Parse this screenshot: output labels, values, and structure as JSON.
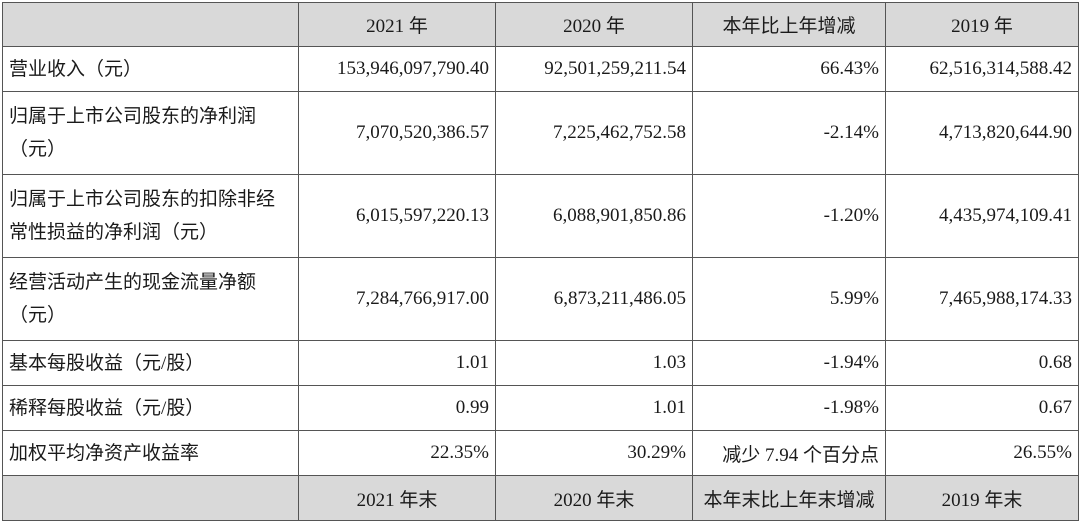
{
  "header": [
    "",
    "2021 年",
    "2020 年",
    "本年比上年增减",
    "2019 年"
  ],
  "rows": [
    [
      "营业收入（元）",
      "153,946,097,790.40",
      "92,501,259,211.54",
      "66.43%",
      "62,516,314,588.42"
    ],
    [
      "归属于上市公司股东的净利润（元）",
      "7,070,520,386.57",
      "7,225,462,752.58",
      "-2.14%",
      "4,713,820,644.90"
    ],
    [
      "归属于上市公司股东的扣除非经常性损益的净利润（元）",
      "6,015,597,220.13",
      "6,088,901,850.86",
      "-1.20%",
      "4,435,974,109.41"
    ],
    [
      "经营活动产生的现金流量净额（元）",
      "7,284,766,917.00",
      "6,873,211,486.05",
      "5.99%",
      "7,465,988,174.33"
    ],
    [
      "基本每股收益（元/股）",
      "1.01",
      "1.03",
      "-1.94%",
      "0.68"
    ],
    [
      "稀释每股收益（元/股）",
      "0.99",
      "1.01",
      "-1.98%",
      "0.67"
    ],
    [
      "加权平均净资产收益率",
      "22.35%",
      "30.29%",
      "减少 7.94 个百分点",
      "26.55%"
    ]
  ],
  "footer": [
    "",
    "2021 年末",
    "2020 年末",
    "本年末比上年末增减",
    "2019 年末"
  ]
}
